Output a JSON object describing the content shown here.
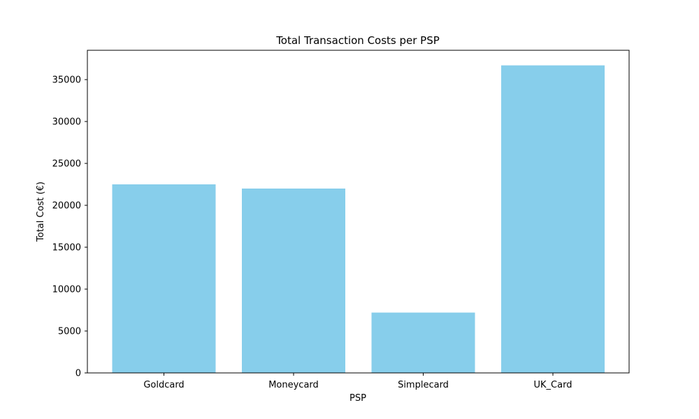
{
  "chart_data": {
    "type": "bar",
    "title": "Total Transaction Costs per PSP",
    "xlabel": "PSP",
    "ylabel": "Total Cost (€)",
    "categories": [
      "Goldcard",
      "Moneycard",
      "Simplecard",
      "UK_Card"
    ],
    "values": [
      22500,
      22000,
      7200,
      36700
    ],
    "ylim": [
      0,
      38500
    ],
    "yticks": [
      0,
      5000,
      10000,
      15000,
      20000,
      25000,
      30000,
      35000
    ],
    "grid": false,
    "bar_color": "#87CEEB"
  }
}
